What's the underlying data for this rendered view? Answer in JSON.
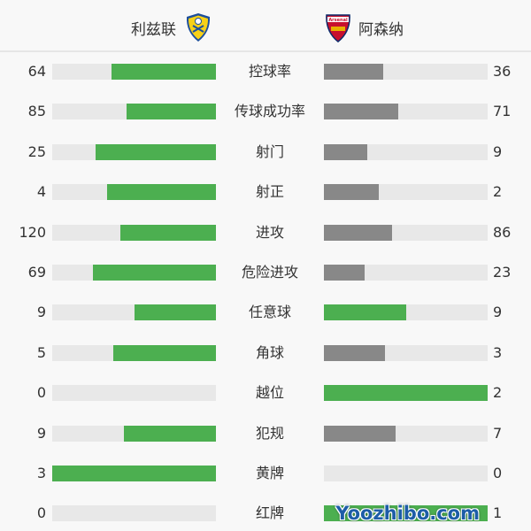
{
  "header": {
    "home_team": "利兹联",
    "away_team": "阿森纳",
    "home_crest_icon": "leeds-united-crest-icon",
    "away_crest_icon": "arsenal-crest-icon",
    "away_crest_text": "Arsenal"
  },
  "colors": {
    "leader": "#4caf50",
    "trailer": "#888888",
    "track": "#e8e8e8"
  },
  "stats": [
    {
      "label": "控球率",
      "home": 64,
      "away": 36
    },
    {
      "label": "传球成功率",
      "home": 85,
      "away": 71
    },
    {
      "label": "射门",
      "home": 25,
      "away": 9
    },
    {
      "label": "射正",
      "home": 4,
      "away": 2
    },
    {
      "label": "进攻",
      "home": 120,
      "away": 86
    },
    {
      "label": "危险进攻",
      "home": 69,
      "away": 23
    },
    {
      "label": "任意球",
      "home": 9,
      "away": 9
    },
    {
      "label": "角球",
      "home": 5,
      "away": 3
    },
    {
      "label": "越位",
      "home": 0,
      "away": 2
    },
    {
      "label": "犯规",
      "home": 9,
      "away": 7
    },
    {
      "label": "黄牌",
      "home": 3,
      "away": 0
    },
    {
      "label": "红牌",
      "home": 0,
      "away": 1
    }
  ],
  "watermark": "Yoozhibo.com"
}
